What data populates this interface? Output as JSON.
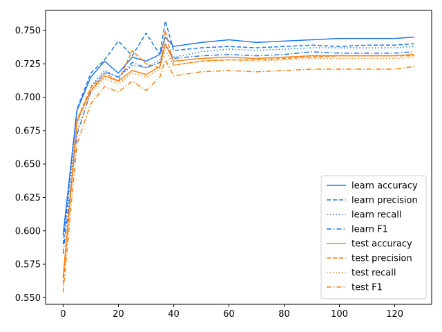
{
  "chart_data": {
    "type": "line",
    "title": "",
    "xlabel": "",
    "ylabel": "",
    "xlim": [
      -6.35,
      133.35
    ],
    "ylim": [
      0.545,
      0.765
    ],
    "x_ticks": [
      0,
      20,
      40,
      60,
      80,
      100,
      120
    ],
    "x_tick_labels": [
      "0",
      "20",
      "40",
      "60",
      "80",
      "100",
      "120"
    ],
    "y_ticks": [
      0.55,
      0.575,
      0.6,
      0.625,
      0.65,
      0.675,
      0.7,
      0.725,
      0.75
    ],
    "y_tick_labels": [
      "0.550",
      "0.575",
      "0.600",
      "0.625",
      "0.650",
      "0.675",
      "0.700",
      "0.725",
      "0.750"
    ],
    "grid": false,
    "legend_position": "lower-right",
    "colors": {
      "learn": "#1f77f0",
      "test": "#ff7f0e"
    },
    "x": [
      0,
      5,
      10,
      15,
      20,
      25,
      30,
      35,
      37,
      40,
      50,
      60,
      70,
      80,
      90,
      100,
      110,
      120,
      127
    ],
    "series": [
      {
        "name": "learn accuracy",
        "style": "solid",
        "color": "#1f77f0",
        "values": [
          0.597,
          0.69,
          0.715,
          0.727,
          0.718,
          0.73,
          0.727,
          0.732,
          0.745,
          0.738,
          0.741,
          0.743,
          0.741,
          0.742,
          0.743,
          0.744,
          0.744,
          0.744,
          0.745
        ]
      },
      {
        "name": "learn precision",
        "style": "dashed",
        "color": "#1f77f0",
        "values": [
          0.59,
          0.691,
          0.718,
          0.728,
          0.742,
          0.731,
          0.748,
          0.732,
          0.757,
          0.735,
          0.737,
          0.738,
          0.737,
          0.738,
          0.739,
          0.738,
          0.739,
          0.739,
          0.74
        ]
      },
      {
        "name": "learn recall",
        "style": "dotted",
        "color": "#1f77f0",
        "values": [
          0.59,
          0.68,
          0.708,
          0.72,
          0.715,
          0.724,
          0.722,
          0.728,
          0.738,
          0.73,
          0.734,
          0.736,
          0.735,
          0.736,
          0.737,
          0.737,
          0.737,
          0.737,
          0.738
        ]
      },
      {
        "name": "learn F1",
        "style": "dashdot",
        "color": "#1f77f0",
        "values": [
          0.583,
          0.672,
          0.704,
          0.719,
          0.715,
          0.726,
          0.722,
          0.726,
          0.74,
          0.729,
          0.731,
          0.732,
          0.731,
          0.732,
          0.734,
          0.733,
          0.733,
          0.733,
          0.734
        ]
      },
      {
        "name": "test accuracy",
        "style": "solid",
        "color": "#ff7f0e",
        "values": [
          0.565,
          0.682,
          0.705,
          0.716,
          0.712,
          0.72,
          0.717,
          0.723,
          0.74,
          0.727,
          0.729,
          0.73,
          0.729,
          0.73,
          0.731,
          0.731,
          0.731,
          0.731,
          0.732
        ]
      },
      {
        "name": "test precision",
        "style": "dashed",
        "color": "#ff7f0e",
        "values": [
          0.56,
          0.683,
          0.707,
          0.718,
          0.712,
          0.735,
          0.725,
          0.722,
          0.75,
          0.724,
          0.727,
          0.728,
          0.728,
          0.729,
          0.73,
          0.731,
          0.731,
          0.731,
          0.731
        ]
      },
      {
        "name": "test recall",
        "style": "dotted",
        "color": "#ff7f0e",
        "values": [
          0.565,
          0.675,
          0.703,
          0.714,
          0.71,
          0.718,
          0.715,
          0.721,
          0.735,
          0.724,
          0.727,
          0.728,
          0.727,
          0.728,
          0.729,
          0.729,
          0.729,
          0.729,
          0.73
        ]
      },
      {
        "name": "test F1",
        "style": "dashdot",
        "color": "#ff7f0e",
        "values": [
          0.554,
          0.665,
          0.695,
          0.708,
          0.704,
          0.712,
          0.705,
          0.715,
          0.728,
          0.716,
          0.719,
          0.72,
          0.719,
          0.72,
          0.721,
          0.721,
          0.721,
          0.721,
          0.723
        ]
      }
    ]
  }
}
